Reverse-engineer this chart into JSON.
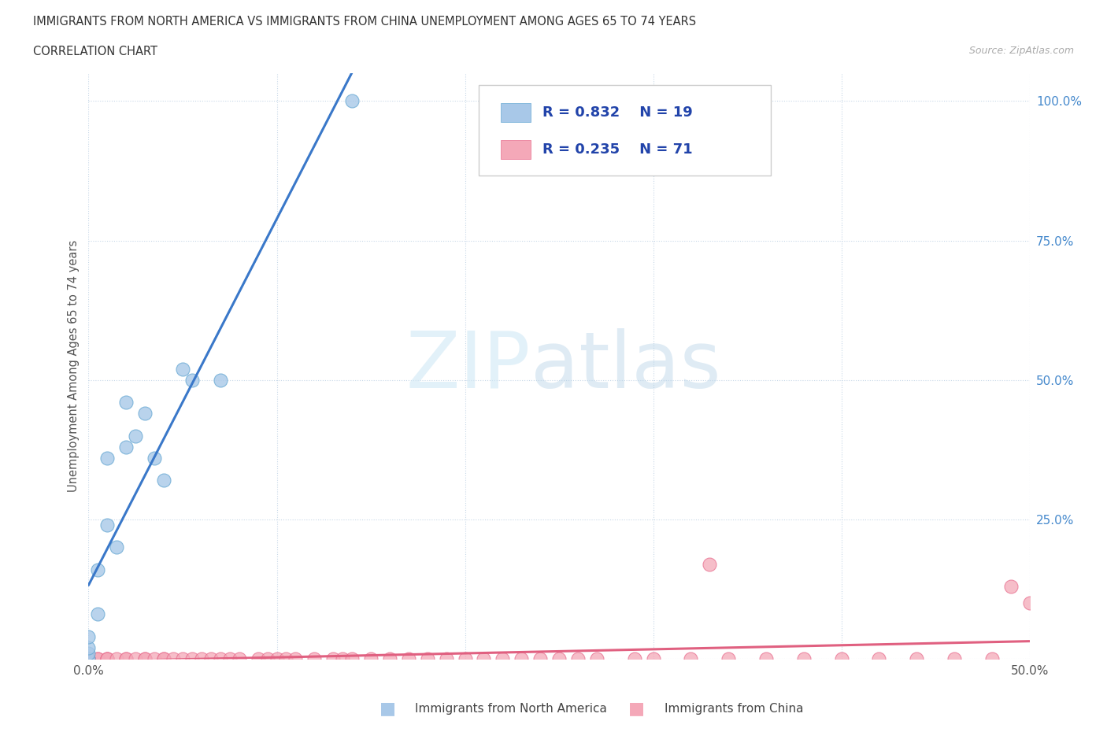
{
  "title_line1": "IMMIGRANTS FROM NORTH AMERICA VS IMMIGRANTS FROM CHINA UNEMPLOYMENT AMONG AGES 65 TO 74 YEARS",
  "title_line2": "CORRELATION CHART",
  "source_text": "Source: ZipAtlas.com",
  "ylabel": "Unemployment Among Ages 65 to 74 years",
  "xlim": [
    0.0,
    0.5
  ],
  "ylim": [
    0.0,
    1.05
  ],
  "color_na": "#a8c8e8",
  "color_na_edge": "#6aaad4",
  "color_china": "#f4a8b8",
  "color_china_edge": "#e87090",
  "color_line_na": "#3a78c9",
  "color_line_china": "#e06080",
  "color_grid": "#c8d8e8",
  "color_ytick": "#4488cc",
  "R_na": 0.832,
  "N_na": 19,
  "R_china": 0.235,
  "N_china": 71,
  "na_x": [
    0.0,
    0.0,
    0.0,
    0.0,
    0.005,
    0.005,
    0.01,
    0.01,
    0.015,
    0.02,
    0.02,
    0.025,
    0.03,
    0.035,
    0.04,
    0.05,
    0.055,
    0.07,
    0.14
  ],
  "na_y": [
    0.0,
    0.01,
    0.02,
    0.04,
    0.08,
    0.16,
    0.24,
    0.36,
    0.2,
    0.38,
    0.46,
    0.4,
    0.44,
    0.36,
    0.32,
    0.52,
    0.5,
    0.5,
    1.0
  ],
  "china_x": [
    0.0,
    0.0,
    0.0,
    0.0,
    0.0,
    0.0,
    0.0,
    0.0,
    0.0,
    0.0,
    0.005,
    0.005,
    0.01,
    0.01,
    0.01,
    0.015,
    0.02,
    0.02,
    0.025,
    0.03,
    0.03,
    0.035,
    0.04,
    0.04,
    0.045,
    0.05,
    0.055,
    0.06,
    0.065,
    0.07,
    0.075,
    0.08,
    0.09,
    0.095,
    0.1,
    0.105,
    0.11,
    0.12,
    0.13,
    0.135,
    0.14,
    0.15,
    0.16,
    0.17,
    0.18,
    0.19,
    0.2,
    0.21,
    0.22,
    0.23,
    0.24,
    0.25,
    0.26,
    0.27,
    0.29,
    0.3,
    0.32,
    0.34,
    0.36,
    0.38,
    0.4,
    0.42,
    0.44,
    0.46,
    0.48,
    0.5,
    0.33,
    0.49,
    0.0,
    0.0,
    0.0
  ],
  "china_y": [
    0.0,
    0.0,
    0.0,
    0.0,
    0.0,
    0.0,
    0.0,
    0.0,
    0.0,
    0.0,
    0.0,
    0.0,
    0.0,
    0.0,
    0.0,
    0.0,
    0.0,
    0.0,
    0.0,
    0.0,
    0.0,
    0.0,
    0.0,
    0.0,
    0.0,
    0.0,
    0.0,
    0.0,
    0.0,
    0.0,
    0.0,
    0.0,
    0.0,
    0.0,
    0.0,
    0.0,
    0.0,
    0.0,
    0.0,
    0.0,
    0.0,
    0.0,
    0.0,
    0.0,
    0.0,
    0.0,
    0.0,
    0.0,
    0.0,
    0.0,
    0.0,
    0.0,
    0.0,
    0.0,
    0.0,
    0.0,
    0.0,
    0.0,
    0.0,
    0.0,
    0.0,
    0.0,
    0.0,
    0.0,
    0.0,
    0.1,
    0.17,
    0.13,
    0.0,
    0.0,
    0.0
  ]
}
